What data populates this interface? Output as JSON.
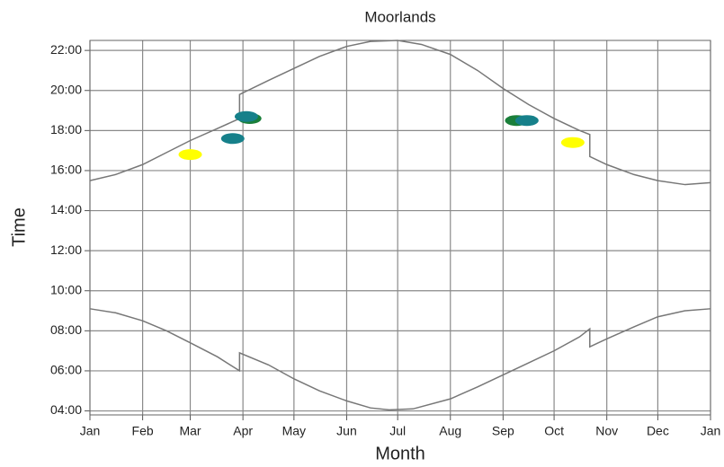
{
  "chart_data": {
    "type": "line",
    "title": "Moorlands",
    "x_label": "Month",
    "y_label": "Time",
    "xlim": [
      0,
      365
    ],
    "ylim": [
      3.8,
      22.5
    ],
    "xticks": [
      {
        "value": 0,
        "label": "Jan"
      },
      {
        "value": 31,
        "label": "Feb"
      },
      {
        "value": 59,
        "label": "Mar"
      },
      {
        "value": 90,
        "label": "Apr"
      },
      {
        "value": 120,
        "label": "May"
      },
      {
        "value": 151,
        "label": "Jun"
      },
      {
        "value": 181,
        "label": "Jul"
      },
      {
        "value": 212,
        "label": "Aug"
      },
      {
        "value": 243,
        "label": "Sep"
      },
      {
        "value": 273,
        "label": "Oct"
      },
      {
        "value": 304,
        "label": "Nov"
      },
      {
        "value": 334,
        "label": "Dec"
      },
      {
        "value": 365,
        "label": "Jan"
      }
    ],
    "yticks": [
      {
        "value": 4,
        "label": "04:00"
      },
      {
        "value": 6,
        "label": "06:00"
      },
      {
        "value": 8,
        "label": "08:00"
      },
      {
        "value": 10,
        "label": "10:00"
      },
      {
        "value": 12,
        "label": "12:00"
      },
      {
        "value": 14,
        "label": "14:00"
      },
      {
        "value": 16,
        "label": "16:00"
      },
      {
        "value": 18,
        "label": "18:00"
      },
      {
        "value": 20,
        "label": "20:00"
      },
      {
        "value": 22,
        "label": "22:00"
      }
    ],
    "grid": true,
    "series": [
      {
        "color": "#777777",
        "x": [
          0,
          15,
          31,
          45,
          59,
          75,
          88,
          88,
          105,
          120,
          135,
          151,
          165,
          181,
          195,
          212,
          228,
          243,
          258,
          273,
          288,
          294,
          294,
          304,
          320,
          334,
          350,
          365
        ],
        "values": [
          15.5,
          15.8,
          16.3,
          16.9,
          17.5,
          18.1,
          18.6,
          19.8,
          20.5,
          21.1,
          21.7,
          22.2,
          22.45,
          22.5,
          22.3,
          21.8,
          21.0,
          20.1,
          19.3,
          18.6,
          18.0,
          17.8,
          16.7,
          16.3,
          15.8,
          15.5,
          15.3,
          15.4
        ]
      },
      {
        "color": "#777777",
        "x": [
          0,
          15,
          31,
          45,
          59,
          75,
          88,
          88,
          105,
          120,
          135,
          151,
          165,
          176,
          190,
          212,
          228,
          243,
          258,
          273,
          288,
          294,
          294,
          304,
          320,
          334,
          350,
          365
        ],
        "values": [
          9.1,
          8.9,
          8.5,
          8.0,
          7.4,
          6.7,
          6.0,
          6.9,
          6.3,
          5.6,
          5.0,
          4.5,
          4.15,
          4.05,
          4.1,
          4.6,
          5.2,
          5.8,
          6.4,
          7.0,
          7.7,
          8.1,
          7.2,
          7.6,
          8.2,
          8.7,
          9.0,
          9.1
        ]
      }
    ],
    "points": [
      {
        "color": "#ffff00",
        "x": [
          59,
          284
        ],
        "values": [
          16.8,
          17.4
        ]
      },
      {
        "color": "#1a7f3a",
        "x": [
          94,
          251
        ],
        "values": [
          18.6,
          18.5
        ]
      },
      {
        "color": "#16808a",
        "x": [
          84,
          92,
          257
        ],
        "values": [
          17.6,
          18.7,
          18.5
        ]
      }
    ]
  }
}
